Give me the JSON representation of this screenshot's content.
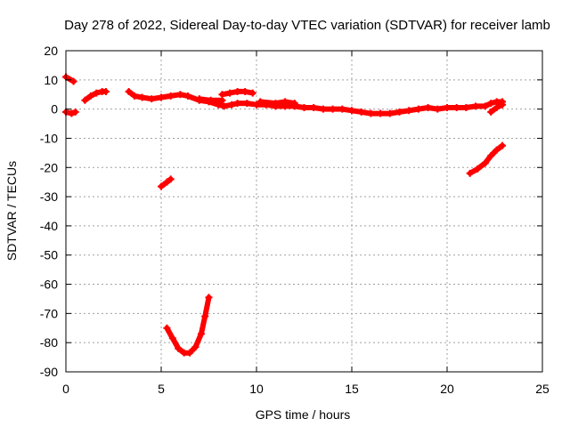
{
  "chart_data": {
    "type": "scatter",
    "title": "Day 278 of 2022, Sidereal Day-to-day VTEC variation (SDTVAR) for receiver lamb",
    "xlabel": "GPS time / hours",
    "ylabel": "SDTVAR / TECUs",
    "xlim": [
      0,
      25
    ],
    "ylim": [
      -90,
      20
    ],
    "xticks": [
      0,
      5,
      10,
      15,
      20,
      25
    ],
    "yticks": [
      20,
      10,
      0,
      -10,
      -20,
      -30,
      -40,
      -50,
      -60,
      -70,
      -80,
      -90
    ],
    "grid": true,
    "legend": "none",
    "series": [
      {
        "name": "SDTVAR",
        "color": "#ff0000",
        "segments": [
          [
            [
              0.0,
              11.0
            ],
            [
              0.4,
              9.5
            ]
          ],
          [
            [
              0.0,
              -1.0
            ],
            [
              0.3,
              -1.5
            ],
            [
              0.5,
              -1.0
            ]
          ],
          [
            [
              1.0,
              3.0
            ],
            [
              1.3,
              4.5
            ],
            [
              1.6,
              5.5
            ],
            [
              1.9,
              6.0
            ],
            [
              2.1,
              6.0
            ]
          ],
          [
            [
              3.3,
              6.0
            ],
            [
              3.6,
              4.5
            ],
            [
              4.0,
              4.0
            ],
            [
              4.5,
              3.5
            ],
            [
              5.0,
              4.0
            ],
            [
              5.5,
              4.5
            ],
            [
              6.0,
              5.0
            ],
            [
              6.4,
              4.5
            ],
            [
              7.0,
              3.0
            ],
            [
              7.5,
              2.5
            ],
            [
              8.0,
              1.5
            ],
            [
              8.3,
              1.0
            ],
            [
              8.7,
              1.5
            ],
            [
              9.0,
              2.0
            ],
            [
              9.5,
              2.0
            ],
            [
              10.0,
              1.5
            ],
            [
              10.5,
              1.5
            ],
            [
              11.0,
              1.0
            ],
            [
              11.5,
              1.0
            ],
            [
              12.0,
              1.0
            ],
            [
              12.5,
              0.5
            ],
            [
              13.0,
              0.5
            ],
            [
              13.5,
              0.0
            ],
            [
              14.0,
              0.0
            ],
            [
              14.5,
              0.0
            ],
            [
              15.0,
              -0.5
            ],
            [
              15.5,
              -1.0
            ],
            [
              16.0,
              -1.5
            ],
            [
              16.5,
              -1.5
            ],
            [
              17.0,
              -1.5
            ],
            [
              17.5,
              -1.0
            ],
            [
              18.0,
              -0.5
            ],
            [
              18.5,
              0.0
            ],
            [
              19.0,
              0.5
            ],
            [
              19.5,
              0.0
            ],
            [
              20.0,
              0.5
            ],
            [
              20.5,
              0.5
            ],
            [
              21.0,
              0.5
            ],
            [
              21.5,
              1.0
            ],
            [
              22.0,
              1.0
            ],
            [
              22.3,
              2.0
            ],
            [
              22.6,
              2.5
            ],
            [
              22.9,
              2.5
            ]
          ],
          [
            [
              7.0,
              3.5
            ],
            [
              7.6,
              3.0
            ],
            [
              8.2,
              3.0
            ]
          ],
          [
            [
              8.2,
              5.0
            ],
            [
              8.6,
              5.5
            ],
            [
              9.0,
              6.0
            ],
            [
              9.4,
              6.0
            ],
            [
              9.8,
              5.5
            ]
          ],
          [
            [
              10.2,
              2.5
            ],
            [
              11.0,
              2.0
            ],
            [
              11.5,
              2.5
            ],
            [
              12.0,
              2.0
            ]
          ],
          [
            [
              22.3,
              -1.0
            ],
            [
              22.6,
              0.5
            ],
            [
              22.9,
              1.5
            ]
          ],
          [
            [
              5.0,
              -26.5
            ],
            [
              5.3,
              -25.0
            ],
            [
              5.5,
              -24.0
            ]
          ],
          [
            [
              5.3,
              -75.0
            ],
            [
              5.6,
              -78.5
            ],
            [
              5.9,
              -82.0
            ],
            [
              6.2,
              -83.5
            ],
            [
              6.5,
              -83.5
            ],
            [
              6.8,
              -81.5
            ],
            [
              7.1,
              -77.0
            ],
            [
              7.3,
              -71.0
            ],
            [
              7.5,
              -64.5
            ]
          ],
          [
            [
              21.2,
              -22.0
            ],
            [
              21.6,
              -20.5
            ],
            [
              22.0,
              -18.5
            ],
            [
              22.3,
              -16.0
            ],
            [
              22.6,
              -14.0
            ],
            [
              22.9,
              -12.5
            ]
          ]
        ]
      }
    ]
  }
}
